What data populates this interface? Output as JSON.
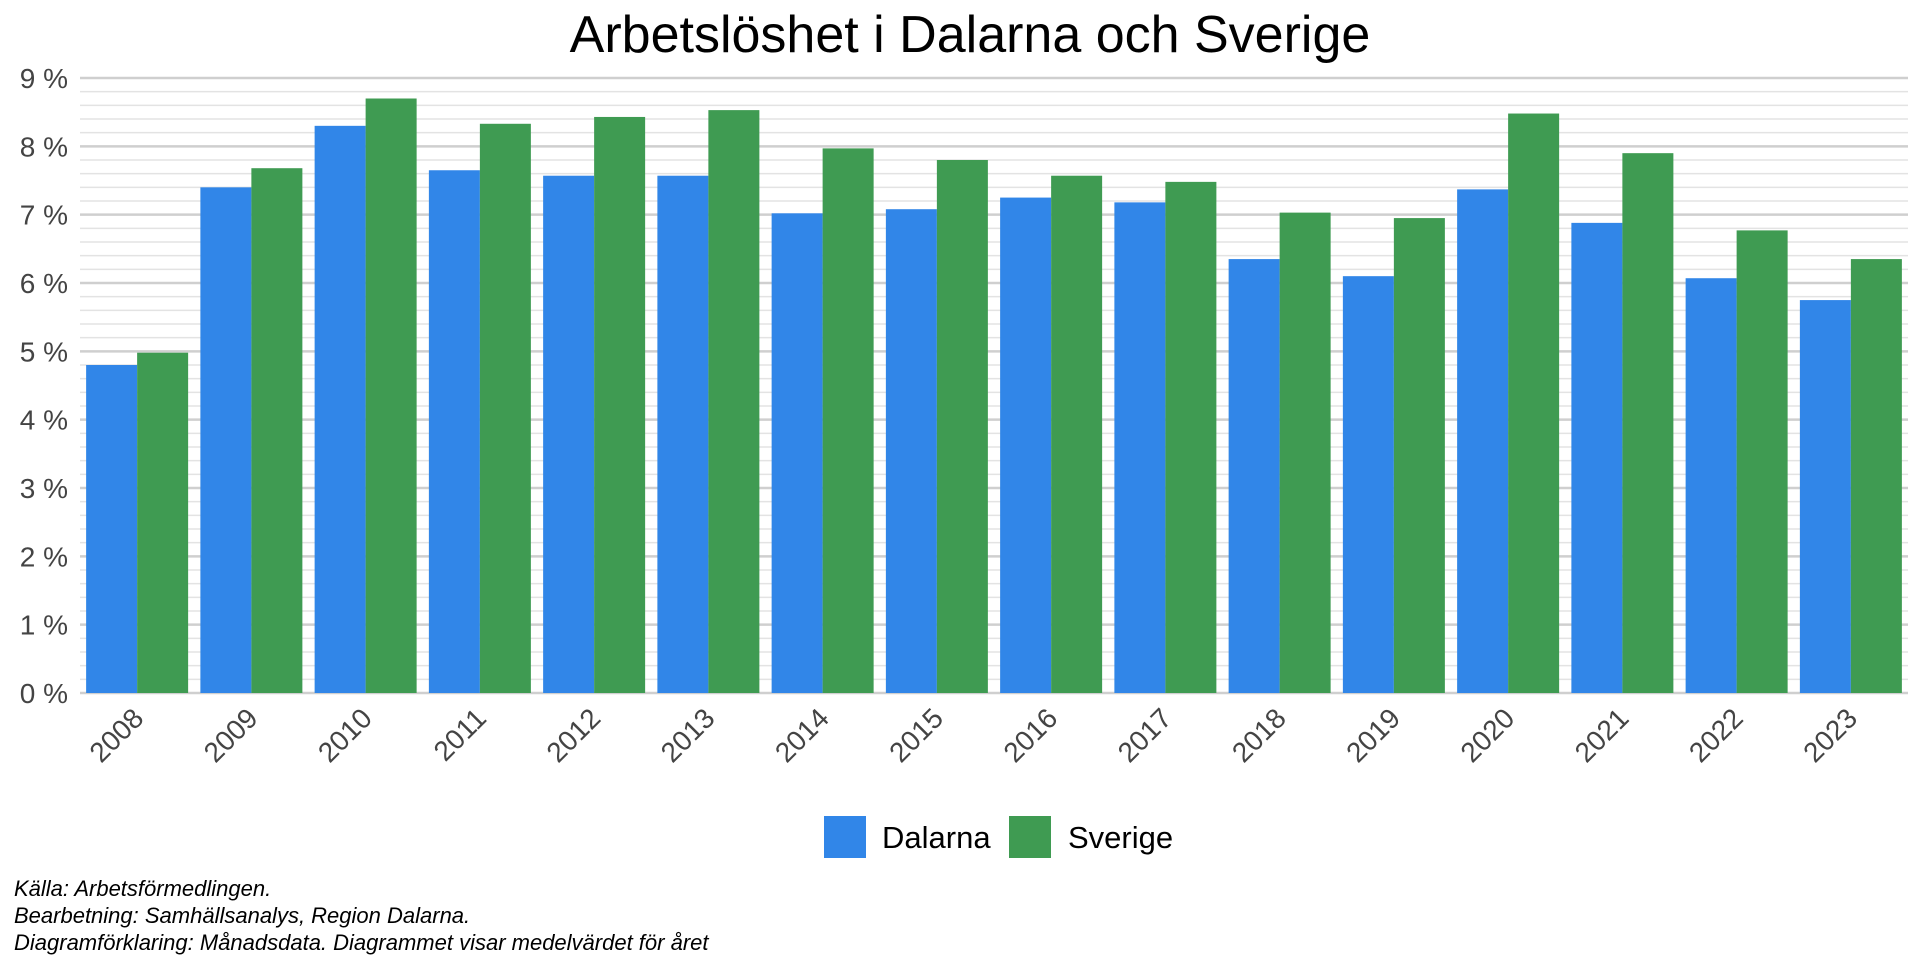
{
  "chart_data": {
    "type": "bar",
    "title": "Arbetslöshet i Dalarna och Sverige",
    "xlabel": "",
    "ylabel": "",
    "ylim": [
      0,
      9
    ],
    "y_ticks": [
      "0 %",
      "1 %",
      "2 %",
      "3 %",
      "4 %",
      "5 %",
      "6 %",
      "7 %",
      "8 %",
      "9 %"
    ],
    "grid": true,
    "legend_position": "bottom",
    "categories": [
      "2008",
      "2009",
      "2010",
      "2011",
      "2012",
      "2013",
      "2014",
      "2015",
      "2016",
      "2017",
      "2018",
      "2019",
      "2020",
      "2021",
      "2022",
      "2023"
    ],
    "series": [
      {
        "name": "Dalarna",
        "color": "#3186E8",
        "values": [
          4.8,
          7.4,
          8.3,
          7.65,
          7.57,
          7.57,
          7.02,
          7.08,
          7.25,
          7.18,
          6.35,
          6.1,
          7.37,
          6.88,
          6.07,
          5.75
        ]
      },
      {
        "name": "Sverige",
        "color": "#3F9B52",
        "values": [
          4.98,
          7.68,
          8.7,
          8.33,
          8.43,
          8.53,
          7.97,
          7.8,
          7.57,
          7.48,
          7.03,
          6.95,
          8.48,
          7.9,
          6.77,
          6.35
        ]
      }
    ],
    "footnotes": [
      "Källa: Arbetsförmedlingen.",
      "Bearbetning: Samhällsanalys, Region Dalarna.",
      "Diagramförklaring: Månadsdata. Diagrammet visar medelvärdet för året"
    ]
  }
}
